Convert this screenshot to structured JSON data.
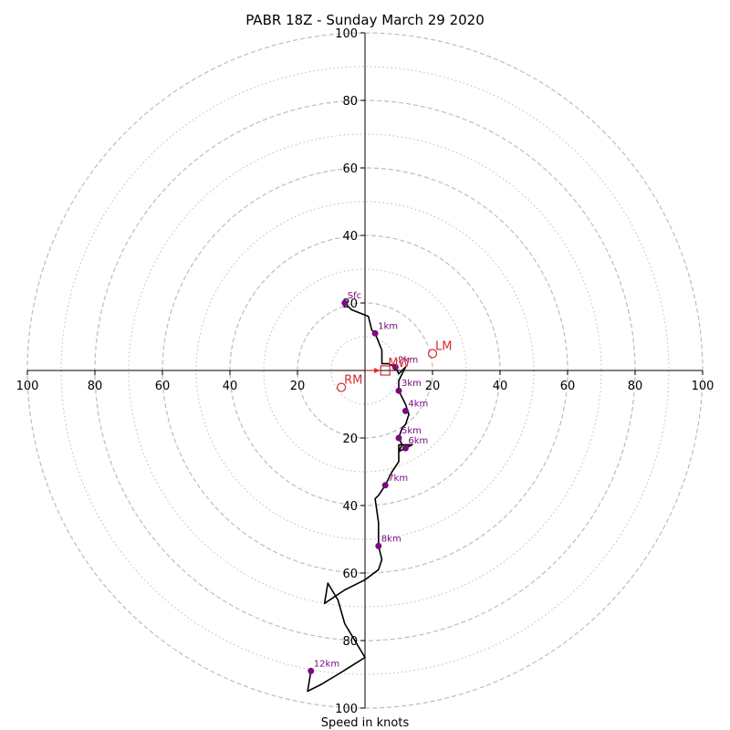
{
  "chart_data": {
    "type": "hodograph",
    "title": "PABR 18Z - Sunday March 29 2020",
    "xlabel": "Speed in knots",
    "ylabel": "",
    "range": [
      -100,
      100
    ],
    "rings_major": [
      20,
      40,
      60,
      80,
      100
    ],
    "rings_minor": [
      10,
      30,
      50,
      70,
      90
    ],
    "ticks_x": [
      {
        "value": -100,
        "label": "100"
      },
      {
        "value": -80,
        "label": "80"
      },
      {
        "value": -60,
        "label": "60"
      },
      {
        "value": -40,
        "label": "40"
      },
      {
        "value": -20,
        "label": "20"
      },
      {
        "value": 20,
        "label": "20"
      },
      {
        "value": 40,
        "label": "40"
      },
      {
        "value": 60,
        "label": "60"
      },
      {
        "value": 80,
        "label": "80"
      },
      {
        "value": 100,
        "label": "100"
      }
    ],
    "ticks_y": [
      {
        "value": 100,
        "label": "100"
      },
      {
        "value": 80,
        "label": "80"
      },
      {
        "value": 60,
        "label": "60"
      },
      {
        "value": 40,
        "label": "40"
      },
      {
        "value": 20,
        "label": "20"
      },
      {
        "value": -20,
        "label": "20"
      },
      {
        "value": -40,
        "label": "40"
      },
      {
        "value": -60,
        "label": "60"
      },
      {
        "value": -80,
        "label": "80"
      },
      {
        "value": -100,
        "label": "100"
      }
    ],
    "trace": [
      [
        -6,
        20
      ],
      [
        -4,
        18
      ],
      [
        1,
        16
      ],
      [
        2,
        12
      ],
      [
        3,
        11
      ],
      [
        5,
        6
      ],
      [
        5,
        3
      ],
      [
        5,
        2
      ],
      [
        7,
        2
      ],
      [
        9,
        1
      ],
      [
        10,
        -1
      ],
      [
        12,
        1
      ],
      [
        10,
        -3
      ],
      [
        10,
        -6
      ],
      [
        11,
        -8
      ],
      [
        12,
        -10
      ],
      [
        13,
        -13
      ],
      [
        12,
        -16
      ],
      [
        11,
        -17
      ],
      [
        10,
        -20
      ],
      [
        11,
        -22
      ],
      [
        10,
        -24
      ],
      [
        12,
        -23
      ],
      [
        14,
        -22
      ],
      [
        10,
        -22
      ],
      [
        10,
        -27
      ],
      [
        8,
        -30
      ],
      [
        6,
        -34
      ],
      [
        4,
        -37
      ],
      [
        3,
        -38
      ],
      [
        4,
        -45
      ],
      [
        4,
        -52
      ],
      [
        5,
        -56
      ],
      [
        4,
        -59
      ],
      [
        0,
        -62
      ],
      [
        -6,
        -65
      ],
      [
        -12,
        -69
      ],
      [
        -11,
        -63
      ],
      [
        -8,
        -68
      ],
      [
        -6,
        -75
      ],
      [
        -3,
        -80
      ],
      [
        0,
        -85
      ],
      [
        -8,
        -90
      ],
      [
        -13,
        -93
      ],
      [
        -17,
        -95
      ],
      [
        -16,
        -89
      ]
    ],
    "height_markers": [
      {
        "label": "Sfc",
        "u": -6,
        "v": 20
      },
      {
        "label": "1km",
        "u": 3,
        "v": 11
      },
      {
        "label": "2km",
        "u": 9,
        "v": 1
      },
      {
        "label": "3km",
        "u": 10,
        "v": -6
      },
      {
        "label": "4km",
        "u": 12,
        "v": -12
      },
      {
        "label": "5km",
        "u": 10,
        "v": -20
      },
      {
        "label": "6km",
        "u": 12,
        "v": -23
      },
      {
        "label": "7km",
        "u": 6,
        "v": -34
      },
      {
        "label": "8km",
        "u": 4,
        "v": -52
      },
      {
        "label": "12km",
        "u": -16,
        "v": -89
      }
    ],
    "storm_motion": [
      {
        "label": "LM",
        "u": 20,
        "v": 5,
        "symbol": "circle"
      },
      {
        "label": "RM",
        "u": -7,
        "v": -5,
        "symbol": "circle"
      },
      {
        "label": "MW",
        "u": 6,
        "v": 0,
        "symbol": "square"
      }
    ],
    "colors": {
      "trace": "#000000",
      "markers": "#7a0a80",
      "storm_motion": "#d42a2a",
      "grid": "#bdbdbd"
    }
  }
}
